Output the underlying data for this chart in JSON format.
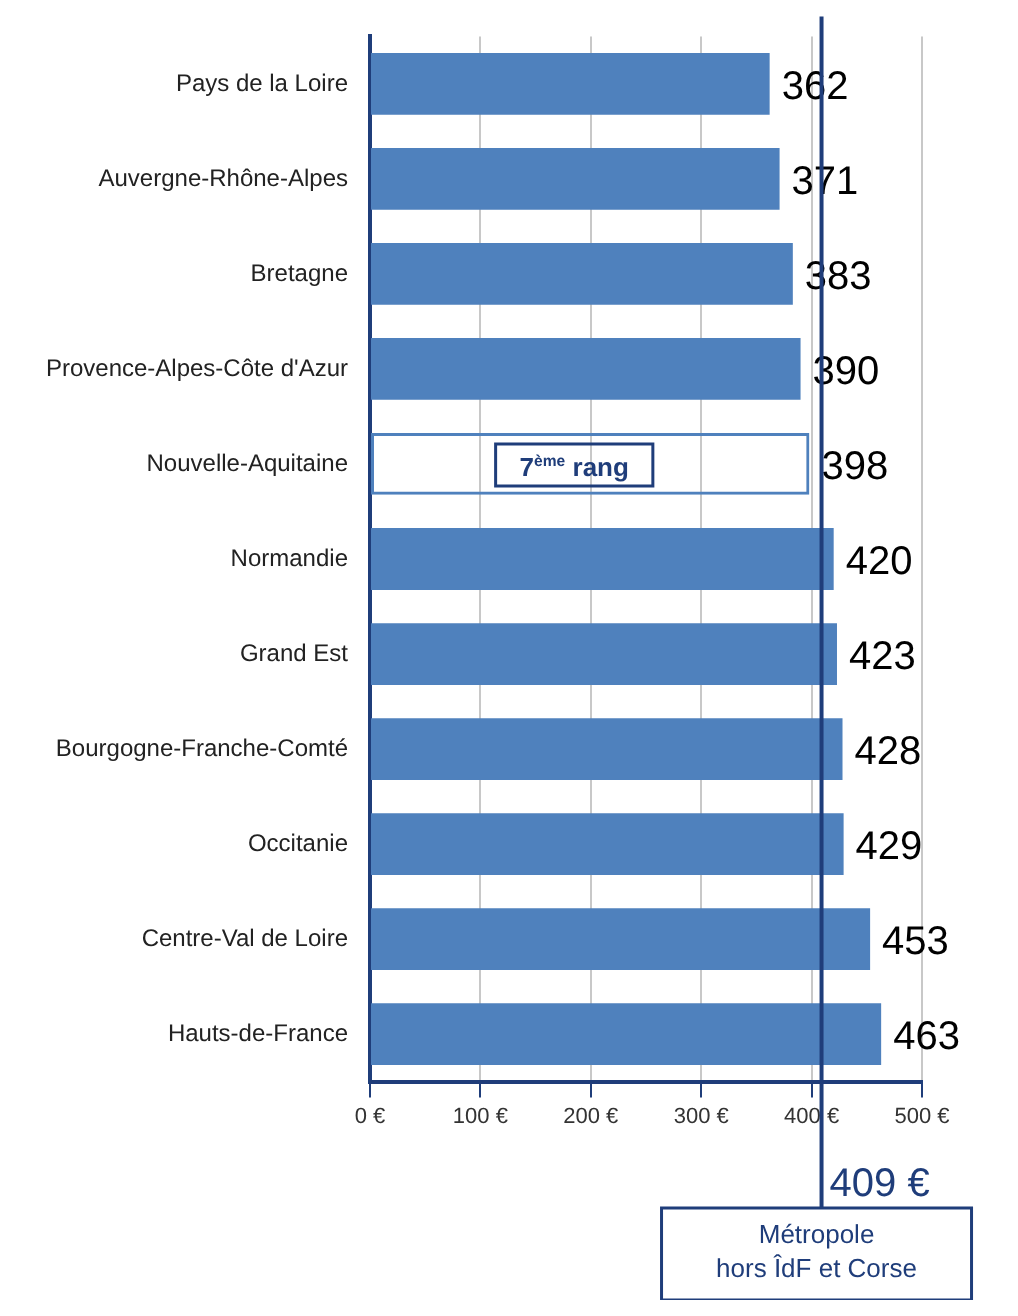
{
  "chart_data": {
    "type": "bar",
    "orientation": "horizontal",
    "categories": [
      "Pays de la Loire",
      "Auvergne-Rhône-Alpes",
      "Bretagne",
      "Provence-Alpes-Côte d'Azur",
      "Nouvelle-Aquitaine",
      "Normandie",
      "Grand Est",
      "Bourgogne-Franche-Comté",
      "Occitanie",
      "Centre-Val de Loire",
      "Hauts-de-France"
    ],
    "values": [
      362,
      371,
      383,
      390,
      398,
      420,
      423,
      428,
      429,
      453,
      463
    ],
    "colors": [
      "#4f81bd",
      "#4f81bd",
      "#4f81bd",
      "#4f81bd",
      "#4f81bd",
      "#4f81bd",
      "#4f81bd",
      "#4f81bd",
      "#4f81bd",
      "#4f81bd",
      "#4f81bd"
    ],
    "xlim": [
      0,
      500
    ],
    "xticks": [
      {
        "value": 0,
        "label": "0 €"
      },
      {
        "value": 100,
        "label": "100 €"
      },
      {
        "value": 200,
        "label": "200 €"
      },
      {
        "value": 300,
        "label": "300 €"
      },
      {
        "value": 400,
        "label": "400 €"
      },
      {
        "value": 500,
        "label": "500 €"
      }
    ],
    "grid": "x",
    "data_labels": true,
    "legend": false,
    "ref_lines": [
      {
        "axis": "x",
        "value": 409,
        "label": "409 €",
        "color": "#1f3d7a"
      }
    ],
    "annotations": [
      {
        "text": "7$^{ème}$ rang",
        "y": "Nouvelle-Aquitaine"
      },
      "Métropole\nhors ÎdF et Corse"
    ]
  }
}
